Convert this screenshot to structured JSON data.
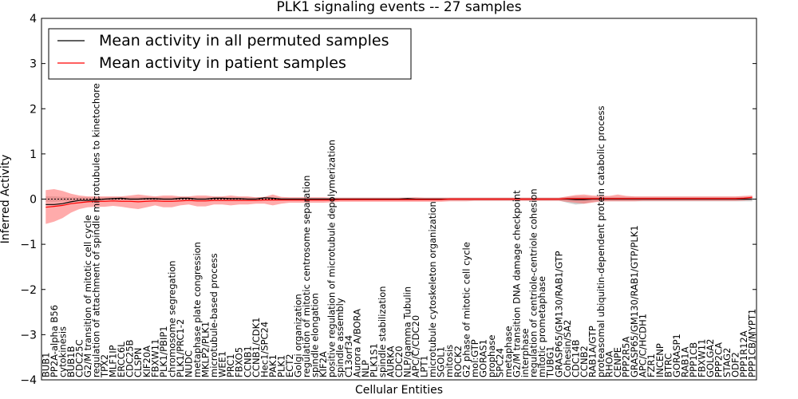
{
  "chart_data": {
    "type": "line",
    "title": "PLK1 signaling events -- 27 samples",
    "xlabel": "Cellular Entities",
    "ylabel": "Inferred Activity",
    "ylim": [
      -4,
      4
    ],
    "yticks": [
      -4,
      -3,
      -2,
      -1,
      0,
      1,
      2,
      3,
      4
    ],
    "ytick_labels": [
      "−4",
      "−3",
      "−2",
      "−1",
      "0",
      "1",
      "2",
      "3",
      "4"
    ],
    "legend_position": "top-left",
    "legend": [
      {
        "label": "Mean activity in all permuted samples",
        "color": "#000000"
      },
      {
        "label": "Mean activity in patient samples",
        "color": "#ff0000"
      }
    ],
    "categories": [
      "BUB1",
      "PP2A-alpha B56",
      "cytokinesis",
      "BUB1B",
      "CDC25C",
      "G2/M transition of mitotic cell cycle",
      "regulation of attachment of spindle microtubules to kinetochore",
      "TPX2",
      "MLF1IP",
      "ERCC6L",
      "CDC25B",
      "CLSPN",
      "KIF20A",
      "FBXW11",
      "PLK1/PBIP1",
      "chromosome segregation",
      "PLK1/PRC1-2",
      "NUDC",
      "metaphase plate congression",
      "MKLP2/PLK1",
      "microtubule-based process",
      "WEE1",
      "PRC1",
      "FBXO5",
      "CCNB1",
      "CCNB1/CDK1",
      "Hec1/SPC24",
      "PAK1",
      "PLK1",
      "ECT2",
      "Golgi organization",
      "regulation of mitotic centrosome separation",
      "spindle elongation",
      "KIF2A",
      "positive regulation of microtubule depolymerization",
      "spindle assembly",
      "C13orf34",
      "Aurora A/BORA",
      "NLP",
      "PLK1S1",
      "spindle stabilization",
      "AURKA",
      "CDC20",
      "NLP/gamma Tubulin",
      "APC/C/CDC20",
      "LPT1",
      "microtubule cytoskeleton organization",
      "SGOL1",
      "mitosis",
      "ROCK2",
      "G2 phase of mitotic cell cycle",
      "mol:GTP",
      "GORAS1",
      "prophase",
      "SPC24",
      "metaphase",
      "G2/M transition DNA damage checkpoint",
      "interphase",
      "regulation of centriole-centriole cohesion",
      "mitotic prometaphase",
      "TUBG1",
      "GRASP65/GM130/RAB1/GTP",
      "Cohesin/SA2",
      "CDC14B",
      "CCNB2",
      "RAB1A/GTP",
      "proteasomal ubiquitin-dependent protein catabolic process",
      "RHOA",
      "CENPE",
      "PPP2R5A",
      "GRASP65/GM130/RAB1/GTP/PLK1",
      "APC/C/HCDH1",
      "FZR1",
      "INCENP",
      "BTRC",
      "GORASP1",
      "RAB1A",
      "PPP1CB",
      "FBXW11",
      "GOLGA2",
      "PPP2CA",
      "STAG2",
      "ODF2",
      "PPP1R12A",
      "PPP1CB/MYPT1"
    ],
    "series": [
      {
        "name": "Mean activity in all permuted samples",
        "color": "#000000",
        "values": [
          -0.12,
          -0.12,
          -0.1,
          -0.06,
          -0.03,
          -0.03,
          -0.02,
          0.0,
          0.01,
          0.02,
          0.0,
          0.0,
          0.01,
          0.01,
          0.0,
          0.0,
          0.02,
          0.02,
          0.0,
          0.0,
          0.02,
          0.02,
          0.01,
          0.01,
          0.0,
          0.0,
          0.03,
          0.02,
          0.0,
          0.0,
          0.0,
          0.0,
          0.0,
          0.0,
          0.0,
          0.0,
          0.0,
          0.0,
          0.0,
          0.0,
          0.0,
          0.0,
          0.0,
          0.01,
          0.0,
          0.0,
          0.0,
          0.0,
          0.0,
          0.0,
          0.0,
          0.0,
          0.0,
          0.0,
          0.0,
          0.0,
          0.0,
          0.0,
          0.0,
          0.0,
          0.0,
          0.0,
          0.0,
          -0.01,
          -0.01,
          0.0,
          0.0,
          0.0,
          0.0,
          0.0,
          0.0,
          0.0,
          0.0,
          0.0,
          0.0,
          0.0,
          0.0,
          0.0,
          0.0,
          0.0,
          0.0,
          0.0,
          0.0,
          0.0,
          0.0
        ]
      },
      {
        "name": "Mean activity in patient samples",
        "color": "#ff0000",
        "values": [
          -0.18,
          -0.16,
          -0.14,
          -0.1,
          -0.08,
          -0.06,
          -0.05,
          -0.05,
          -0.04,
          -0.05,
          -0.05,
          -0.06,
          -0.05,
          -0.04,
          -0.05,
          -0.05,
          -0.04,
          -0.03,
          -0.04,
          -0.04,
          -0.03,
          -0.03,
          -0.03,
          -0.03,
          -0.03,
          -0.03,
          -0.02,
          -0.02,
          -0.02,
          -0.02,
          -0.02,
          -0.02,
          -0.02,
          -0.02,
          -0.02,
          -0.01,
          -0.01,
          -0.01,
          -0.01,
          -0.01,
          -0.01,
          -0.01,
          -0.01,
          -0.01,
          -0.01,
          -0.01,
          -0.01,
          -0.01,
          0.0,
          0.0,
          0.0,
          0.0,
          0.0,
          0.0,
          0.0,
          0.0,
          0.0,
          0.0,
          0.0,
          0.0,
          0.0,
          0.0,
          0.01,
          0.01,
          0.01,
          0.01,
          0.01,
          0.01,
          0.01,
          0.01,
          0.01,
          0.01,
          0.01,
          0.01,
          0.01,
          0.01,
          0.01,
          0.01,
          0.01,
          0.01,
          0.01,
          0.01,
          0.01,
          0.02,
          0.04
        ]
      }
    ],
    "patient_band": {
      "lower": [
        -0.55,
        -0.5,
        -0.42,
        -0.3,
        -0.22,
        -0.18,
        -0.17,
        -0.17,
        -0.15,
        -0.17,
        -0.2,
        -0.22,
        -0.18,
        -0.14,
        -0.18,
        -0.18,
        -0.14,
        -0.12,
        -0.16,
        -0.16,
        -0.12,
        -0.12,
        -0.14,
        -0.12,
        -0.12,
        -0.1,
        -0.1,
        -0.14,
        -0.1,
        -0.08,
        -0.08,
        -0.08,
        -0.08,
        -0.08,
        -0.07,
        -0.06,
        -0.06,
        -0.06,
        -0.06,
        -0.06,
        -0.06,
        -0.06,
        -0.06,
        -0.06,
        -0.06,
        -0.06,
        -0.06,
        -0.06,
        -0.05,
        -0.05,
        -0.05,
        -0.04,
        -0.04,
        -0.04,
        -0.04,
        -0.04,
        -0.04,
        -0.04,
        -0.04,
        -0.04,
        -0.04,
        -0.04,
        -0.06,
        -0.08,
        -0.1,
        -0.08,
        -0.05,
        -0.05,
        -0.05,
        -0.05,
        -0.05,
        -0.04,
        -0.04,
        -0.04,
        -0.04,
        -0.04,
        -0.04,
        -0.04,
        -0.04,
        -0.04,
        -0.04,
        -0.04,
        -0.04,
        -0.03,
        -0.01
      ],
      "upper": [
        0.2,
        0.22,
        0.18,
        0.12,
        0.08,
        0.06,
        0.06,
        0.06,
        0.06,
        0.06,
        0.08,
        0.1,
        0.08,
        0.06,
        0.08,
        0.08,
        0.06,
        0.06,
        0.08,
        0.08,
        0.06,
        0.06,
        0.08,
        0.06,
        0.06,
        0.04,
        0.05,
        0.1,
        0.05,
        0.04,
        0.04,
        0.04,
        0.04,
        0.04,
        0.03,
        0.03,
        0.03,
        0.03,
        0.03,
        0.03,
        0.03,
        0.03,
        0.03,
        0.03,
        0.04,
        0.03,
        0.03,
        0.03,
        0.03,
        0.03,
        0.03,
        0.03,
        0.03,
        0.03,
        0.03,
        0.03,
        0.03,
        0.03,
        0.03,
        0.03,
        0.03,
        0.03,
        0.06,
        0.09,
        0.1,
        0.08,
        0.07,
        0.07,
        0.1,
        0.07,
        0.06,
        0.06,
        0.06,
        0.06,
        0.06,
        0.06,
        0.06,
        0.06,
        0.06,
        0.06,
        0.06,
        0.06,
        0.06,
        0.07,
        0.08
      ]
    },
    "permuted_band": {
      "lower": [
        -0.06,
        -0.06,
        -0.05,
        -0.04,
        -0.03,
        -0.03,
        -0.03,
        -0.03,
        -0.03,
        -0.03,
        -0.03,
        -0.03,
        -0.03,
        -0.03,
        -0.03,
        -0.03,
        -0.03,
        -0.03,
        -0.03,
        -0.03,
        -0.03,
        -0.03,
        -0.03,
        -0.03,
        -0.03,
        -0.03,
        -0.03,
        -0.03,
        -0.03,
        -0.03,
        -0.03,
        -0.03,
        -0.03,
        -0.03,
        -0.03,
        -0.03,
        -0.03,
        -0.03,
        -0.03,
        -0.03,
        -0.03,
        -0.03,
        -0.03,
        -0.03,
        -0.03,
        -0.03,
        -0.03,
        -0.03,
        -0.03,
        -0.03,
        -0.03,
        -0.03,
        -0.03,
        -0.03,
        -0.03,
        -0.03,
        -0.03,
        -0.03,
        -0.03,
        -0.03,
        -0.03,
        -0.03,
        -0.08,
        -0.12,
        -0.1,
        -0.06,
        -0.05,
        -0.05,
        -0.05,
        -0.05,
        -0.05,
        -0.05,
        -0.05,
        -0.05,
        -0.05,
        -0.05,
        -0.05,
        -0.05,
        -0.05,
        -0.05,
        -0.05,
        -0.05,
        -0.05,
        -0.05,
        -0.05
      ],
      "upper": [
        0.06,
        0.06,
        0.05,
        0.04,
        0.04,
        0.04,
        0.04,
        0.04,
        0.04,
        0.04,
        0.04,
        0.04,
        0.04,
        0.04,
        0.04,
        0.04,
        0.04,
        0.04,
        0.04,
        0.04,
        0.04,
        0.04,
        0.04,
        0.04,
        0.04,
        0.04,
        0.04,
        0.04,
        0.03,
        0.03,
        0.03,
        0.03,
        0.03,
        0.03,
        0.03,
        0.03,
        0.03,
        0.03,
        0.03,
        0.03,
        0.03,
        0.03,
        0.03,
        0.03,
        0.03,
        0.03,
        0.03,
        0.03,
        0.03,
        0.03,
        0.03,
        0.03,
        0.03,
        0.03,
        0.03,
        0.03,
        0.03,
        0.03,
        0.03,
        0.03,
        0.03,
        0.03,
        0.05,
        0.06,
        0.06,
        0.05,
        0.05,
        0.05,
        0.05,
        0.05,
        0.05,
        0.05,
        0.05,
        0.05,
        0.05,
        0.05,
        0.05,
        0.05,
        0.05,
        0.05,
        0.05,
        0.05,
        0.05,
        0.05,
        0.05
      ]
    },
    "colors": {
      "patient_line": "#ff0000",
      "patient_band": "#ff6666",
      "permuted_line": "#000000",
      "permuted_band": "#b8b8b8",
      "zero_line": "#000000"
    }
  }
}
